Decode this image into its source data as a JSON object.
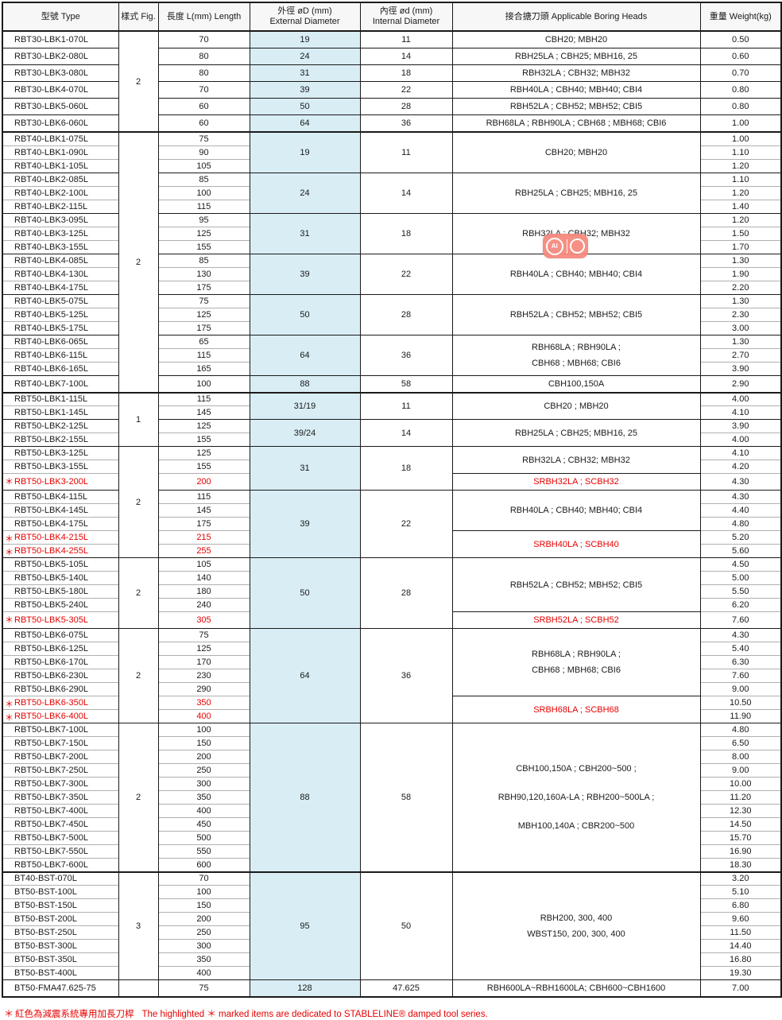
{
  "colors": {
    "column_highlight": "#d9edf4",
    "red_accent": "#e60000",
    "badge_coral": "#f5897d",
    "border": "#1a1a1a"
  },
  "watermark": {
    "ai_label": "AI"
  },
  "header": {
    "type": "型號 Type",
    "fig": "樣式 Fig.",
    "length": "長度 L(mm) Length",
    "ext1": "外徑 øD (mm)",
    "ext2": "External Diameter",
    "int1": "內徑 ød (mm)",
    "int2": "Internal Diameter",
    "heads": "接合搪刀頭 Applicable Boring Heads",
    "weight": "重量 Weight(kg)"
  },
  "footnote": {
    "star": "＊",
    "zh": "紅色為減震系統專用加長刀桿",
    "en": "The highlighted ＊ marked items are dedicated to STABLELINE® damped tool series."
  },
  "table": {
    "star": "＊",
    "groups": [
      {
        "fig": "2",
        "section": false,
        "blocks": [
          {
            "ext": "19",
            "int": "11",
            "heads": [
              {
                "lines": [
                  "CBH20; MBH20"
                ],
                "span": 1
              }
            ],
            "rows": [
              {
                "t": "RBT30-LBK1-070L",
                "l": "70",
                "w": "0.50"
              }
            ]
          },
          {
            "ext": "24",
            "int": "14",
            "heads": [
              {
                "lines": [
                  "RBH25LA ; CBH25; MBH16, 25"
                ],
                "span": 1
              }
            ],
            "rows": [
              {
                "t": "RBT30-LBK2-080L",
                "l": "80",
                "w": "0.60"
              }
            ]
          },
          {
            "ext": "31",
            "int": "18",
            "heads": [
              {
                "lines": [
                  "RBH32LA ; CBH32; MBH32"
                ],
                "span": 1
              }
            ],
            "rows": [
              {
                "t": "RBT30-LBK3-080L",
                "l": "80",
                "w": "0.70"
              }
            ]
          },
          {
            "ext": "39",
            "int": "22",
            "heads": [
              {
                "lines": [
                  "RBH40LA ; CBH40; MBH40; CBI4"
                ],
                "span": 1
              }
            ],
            "rows": [
              {
                "t": "RBT30-LBK4-070L",
                "l": "70",
                "w": "0.80"
              }
            ]
          },
          {
            "ext": "50",
            "int": "28",
            "heads": [
              {
                "lines": [
                  "RBH52LA ; CBH52; MBH52; CBI5"
                ],
                "span": 1
              }
            ],
            "rows": [
              {
                "t": "RBT30-LBK5-060L",
                "l": "60",
                "w": "0.80"
              }
            ]
          },
          {
            "ext": "64",
            "int": "36",
            "heads": [
              {
                "lines": [
                  "RBH68LA ; RBH90LA ; CBH68 ; MBH68; CBI6"
                ],
                "span": 1
              }
            ],
            "rows": [
              {
                "t": "RBT30-LBK6-060L",
                "l": "60",
                "w": "1.00"
              }
            ]
          }
        ]
      },
      {
        "fig": "2",
        "section": true,
        "blocks": [
          {
            "ext": "19",
            "int": "11",
            "heads": [
              {
                "lines": [
                  "CBH20; MBH20"
                ],
                "span": 3
              }
            ],
            "rows": [
              {
                "t": "RBT40-LBK1-075L",
                "l": "75",
                "w": "1.00"
              },
              {
                "t": "RBT40-LBK1-090L",
                "l": "90",
                "w": "1.10"
              },
              {
                "t": "RBT40-LBK1-105L",
                "l": "105",
                "w": "1.20"
              }
            ]
          },
          {
            "ext": "24",
            "int": "14",
            "heads": [
              {
                "lines": [
                  "RBH25LA ; CBH25; MBH16, 25"
                ],
                "span": 3
              }
            ],
            "rows": [
              {
                "t": "RBT40-LBK2-085L",
                "l": "85",
                "w": "1.10"
              },
              {
                "t": "RBT40-LBK2-100L",
                "l": "100",
                "w": "1.20"
              },
              {
                "t": "RBT40-LBK2-115L",
                "l": "115",
                "w": "1.40"
              }
            ]
          },
          {
            "ext": "31",
            "int": "18",
            "heads": [
              {
                "lines": [
                  "RBH32LA ; CBH32; MBH32"
                ],
                "span": 3
              }
            ],
            "rows": [
              {
                "t": "RBT40-LBK3-095L",
                "l": "95",
                "w": "1.20"
              },
              {
                "t": "RBT40-LBK3-125L",
                "l": "125",
                "w": "1.50"
              },
              {
                "t": "RBT40-LBK3-155L",
                "l": "155",
                "w": "1.70"
              }
            ]
          },
          {
            "ext": "39",
            "int": "22",
            "heads": [
              {
                "lines": [
                  "RBH40LA ; CBH40; MBH40; CBI4"
                ],
                "span": 3
              }
            ],
            "rows": [
              {
                "t": "RBT40-LBK4-085L",
                "l": "85",
                "w": "1.30"
              },
              {
                "t": "RBT40-LBK4-130L",
                "l": "130",
                "w": "1.90"
              },
              {
                "t": "RBT40-LBK4-175L",
                "l": "175",
                "w": "2.20"
              }
            ]
          },
          {
            "ext": "50",
            "int": "28",
            "heads": [
              {
                "lines": [
                  "RBH52LA ; CBH52; MBH52; CBI5"
                ],
                "span": 3
              }
            ],
            "rows": [
              {
                "t": "RBT40-LBK5-075L",
                "l": "75",
                "w": "1.30"
              },
              {
                "t": "RBT40-LBK5-125L",
                "l": "125",
                "w": "2.30"
              },
              {
                "t": "RBT40-LBK5-175L",
                "l": "175",
                "w": "3.00"
              }
            ]
          },
          {
            "ext": "64",
            "int": "36",
            "heads": [
              {
                "lines": [
                  "RBH68LA ; RBH90LA ;",
                  "CBH68 ; MBH68; CBI6"
                ],
                "span": 3
              }
            ],
            "rows": [
              {
                "t": "RBT40-LBK6-065L",
                "l": "65",
                "w": "1.30"
              },
              {
                "t": "RBT40-LBK6-115L",
                "l": "115",
                "w": "2.70"
              },
              {
                "t": "RBT40-LBK6-165L",
                "l": "165",
                "w": "3.90"
              }
            ]
          },
          {
            "ext": "88",
            "int": "58",
            "heads": [
              {
                "lines": [
                  "CBH100,150A"
                ],
                "span": 1
              }
            ],
            "rows": [
              {
                "t": "RBT40-LBK7-100L",
                "l": "100",
                "w": "2.90"
              }
            ]
          }
        ]
      },
      {
        "fig": "1",
        "section": true,
        "blocks": [
          {
            "ext": "31/19",
            "int": "11",
            "heads": [
              {
                "lines": [
                  "CBH20 ; MBH20"
                ],
                "span": 2
              }
            ],
            "rows": [
              {
                "t": "RBT50-LBK1-115L",
                "l": "115",
                "w": "4.00"
              },
              {
                "t": "RBT50-LBK1-145L",
                "l": "145",
                "w": "4.10"
              }
            ]
          },
          {
            "ext": "39/24",
            "int": "14",
            "heads": [
              {
                "lines": [
                  "RBH25LA ; CBH25; MBH16, 25"
                ],
                "span": 2
              }
            ],
            "rows": [
              {
                "t": "RBT50-LBK2-125L",
                "l": "125",
                "w": "3.90"
              },
              {
                "t": "RBT50-LBK2-155L",
                "l": "155",
                "w": "4.00"
              }
            ]
          }
        ]
      },
      {
        "fig": "2",
        "section": false,
        "blocks": [
          {
            "ext": "31",
            "int": "18",
            "heads": [
              {
                "lines": [
                  "RBH32LA ; CBH32; MBH32"
                ],
                "span": 2
              },
              {
                "lines": [
                  "SRBH32LA ; SCBH32"
                ],
                "span": 1,
                "red": true
              }
            ],
            "rows": [
              {
                "t": "RBT50-LBK3-125L",
                "l": "125",
                "w": "4.10"
              },
              {
                "t": "RBT50-LBK3-155L",
                "l": "155",
                "w": "4.20"
              },
              {
                "t": "RBT50-LBK3-200L",
                "l": "200",
                "w": "4.30",
                "r": true
              }
            ]
          },
          {
            "ext": "39",
            "int": "22",
            "heads": [
              {
                "lines": [
                  "RBH40LA ; CBH40; MBH40; CBI4"
                ],
                "span": 3
              },
              {
                "lines": [
                  "SRBH40LA ; SCBH40"
                ],
                "span": 2,
                "red": true
              }
            ],
            "rows": [
              {
                "t": "RBT50-LBK4-115L",
                "l": "115",
                "w": "4.30"
              },
              {
                "t": "RBT50-LBK4-145L",
                "l": "145",
                "w": "4.40"
              },
              {
                "t": "RBT50-LBK4-175L",
                "l": "175",
                "w": "4.80"
              },
              {
                "t": "RBT50-LBK4-215L",
                "l": "215",
                "w": "5.20",
                "r": true
              },
              {
                "t": "RBT50-LBK4-255L",
                "l": "255",
                "w": "5.60",
                "r": true
              }
            ]
          }
        ]
      },
      {
        "fig": "2",
        "section": false,
        "blocks": [
          {
            "ext": "50",
            "int": "28",
            "heads": [
              {
                "lines": [
                  "RBH52LA ; CBH52; MBH52; CBI5"
                ],
                "span": 4
              },
              {
                "lines": [
                  "SRBH52LA ; SCBH52"
                ],
                "span": 1,
                "red": true
              }
            ],
            "rows": [
              {
                "t": "RBT50-LBK5-105L",
                "l": "105",
                "w": "4.50"
              },
              {
                "t": "RBT50-LBK5-140L",
                "l": "140",
                "w": "5.00"
              },
              {
                "t": "RBT50-LBK5-180L",
                "l": "180",
                "w": "5.50"
              },
              {
                "t": "RBT50-LBK5-240L",
                "l": "240",
                "w": "6.20"
              },
              {
                "t": "RBT50-LBK5-305L",
                "l": "305",
                "w": "7.60",
                "r": true
              }
            ]
          }
        ]
      },
      {
        "fig": "2",
        "section": false,
        "blocks": [
          {
            "ext": "64",
            "int": "36",
            "heads": [
              {
                "lines": [
                  "RBH68LA ; RBH90LA ;",
                  "CBH68 ; MBH68; CBI6"
                ],
                "span": 5
              },
              {
                "lines": [
                  "SRBH68LA ; SCBH68"
                ],
                "span": 2,
                "red": true
              }
            ],
            "rows": [
              {
                "t": "RBT50-LBK6-075L",
                "l": "75",
                "w": "4.30"
              },
              {
                "t": "RBT50-LBK6-125L",
                "l": "125",
                "w": "5.40"
              },
              {
                "t": "RBT50-LBK6-170L",
                "l": "170",
                "w": "6.30"
              },
              {
                "t": "RBT50-LBK6-230L",
                "l": "230",
                "w": "7.60"
              },
              {
                "t": "RBT50-LBK6-290L",
                "l": "290",
                "w": "9.00"
              },
              {
                "t": "RBT50-LBK6-350L",
                "l": "350",
                "w": "10.50",
                "r": true
              },
              {
                "t": "RBT50-LBK6-400L",
                "l": "400",
                "w": "11.90",
                "r": true
              }
            ]
          }
        ]
      },
      {
        "fig": "2",
        "section": false,
        "blocks": [
          {
            "ext": "88",
            "int": "58",
            "heads": [
              {
                "lines": [
                  "CBH100,150A ; CBH200~500 ;",
                  "RBH90,120,160A-LA ; RBH200~500LA ;",
                  "MBH100,140A ; CBR200~500"
                ],
                "span": 11,
                "wide": true
              }
            ],
            "rows": [
              {
                "t": "RBT50-LBK7-100L",
                "l": "100",
                "w": "4.80"
              },
              {
                "t": "RBT50-LBK7-150L",
                "l": "150",
                "w": "6.50"
              },
              {
                "t": "RBT50-LBK7-200L",
                "l": "200",
                "w": "8.00"
              },
              {
                "t": "RBT50-LBK7-250L",
                "l": "250",
                "w": "9.00"
              },
              {
                "t": "RBT50-LBK7-300L",
                "l": "300",
                "w": "10.00"
              },
              {
                "t": "RBT50-LBK7-350L",
                "l": "350",
                "w": "11.20"
              },
              {
                "t": "RBT50-LBK7-400L",
                "l": "400",
                "w": "12.30"
              },
              {
                "t": "RBT50-LBK7-450L",
                "l": "450",
                "w": "14.50"
              },
              {
                "t": "RBT50-LBK7-500L",
                "l": "500",
                "w": "15.70"
              },
              {
                "t": "RBT50-LBK7-550L",
                "l": "550",
                "w": "16.90"
              },
              {
                "t": "RBT50-LBK7-600L",
                "l": "600",
                "w": "18.30"
              }
            ]
          }
        ]
      },
      {
        "fig": "3",
        "section": true,
        "blocks": [
          {
            "ext": "95",
            "int": "50",
            "heads": [
              {
                "lines": [
                  "RBH200, 300, 400",
                  "WBST150, 200, 300, 400"
                ],
                "span": 8
              }
            ],
            "rows": [
              {
                "t": "BT40-BST-070L",
                "l": "70",
                "w": "3.20"
              },
              {
                "t": "BT50-BST-100L",
                "l": "100",
                "w": "5.10"
              },
              {
                "t": "BT50-BST-150L",
                "l": "150",
                "w": "6.80"
              },
              {
                "t": "BT50-BST-200L",
                "l": "200",
                "w": "9.60"
              },
              {
                "t": "BT50-BST-250L",
                "l": "250",
                "w": "11.50"
              },
              {
                "t": "BT50-BST-300L",
                "l": "300",
                "w": "14.40"
              },
              {
                "t": "BT50-BST-350L",
                "l": "350",
                "w": "16.80"
              },
              {
                "t": "BT50-BST-400L",
                "l": "400",
                "w": "19.30"
              }
            ]
          }
        ]
      },
      {
        "fig": "",
        "section": false,
        "blocks": [
          {
            "ext": "128",
            "int": "47.625",
            "heads": [
              {
                "lines": [
                  "RBH600LA~RBH1600LA; CBH600~CBH1600"
                ],
                "span": 1
              }
            ],
            "rows": [
              {
                "t": "BT50-FMA47.625-75",
                "l": "75",
                "w": "7.00"
              }
            ]
          }
        ]
      }
    ]
  }
}
